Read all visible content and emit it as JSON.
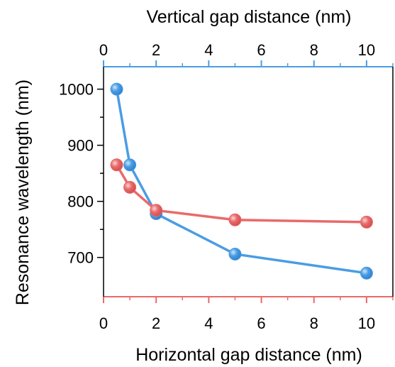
{
  "chart_data": {
    "type": "line",
    "xlabel_bottom": "Horizontal gap distance (nm)",
    "xlabel_top": "Vertical gap distance (nm)",
    "ylabel": "Resonance wavelength (nm)",
    "xlim": [
      0,
      11
    ],
    "ylim": [
      630,
      1040
    ],
    "x_ticks": [
      0,
      2,
      4,
      6,
      8,
      10
    ],
    "y_ticks": [
      700,
      800,
      900,
      1000
    ],
    "x_minor_ticks": [
      1,
      3,
      5,
      7,
      9,
      11
    ],
    "y_minor_ticks": [
      750,
      850,
      950
    ],
    "grid": false,
    "legend": "none",
    "series": [
      {
        "axis": "top",
        "color": "#4a9de3",
        "x": [
          0.5,
          1,
          2,
          5,
          10
        ],
        "y": [
          1000,
          865,
          778,
          706,
          672
        ]
      },
      {
        "axis": "bottom",
        "color": "#e96a6a",
        "x": [
          0.5,
          1,
          2,
          5,
          10
        ],
        "y": [
          865,
          825,
          784,
          767,
          763
        ]
      }
    ],
    "top_axis_color": "#4a9de3",
    "bottom_axis_color": "#e96a6a"
  }
}
